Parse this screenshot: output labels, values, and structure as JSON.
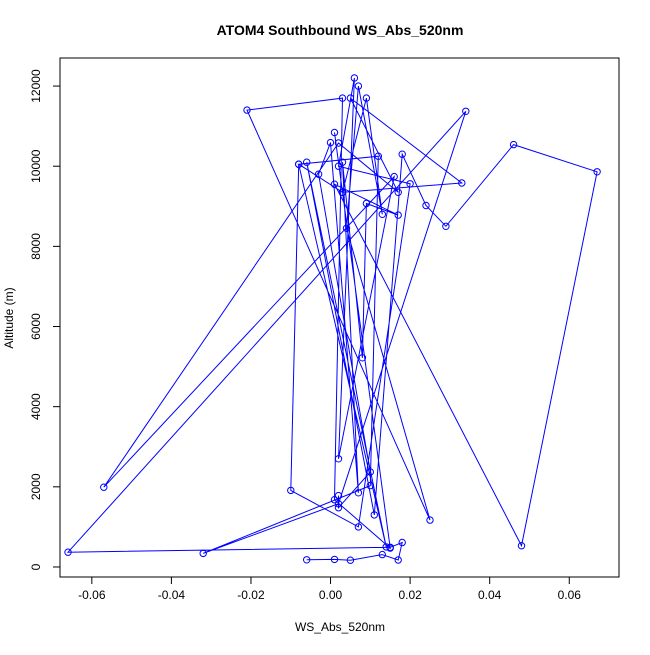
{
  "chart_data": {
    "type": "line",
    "title": "ATOM4 Southbound WS_Abs_520nm",
    "xlabel": "WS_Abs_520nm",
    "ylabel": "Altitude (m)",
    "xlim": [
      -0.068,
      0.0725
    ],
    "ylim": [
      -250,
      12700
    ],
    "x_ticks": [
      -0.06,
      -0.04,
      -0.02,
      0.0,
      0.02,
      0.04,
      0.06
    ],
    "x_tick_labels": [
      "-0.06",
      "-0.04",
      "-0.02",
      "0.00",
      "0.02",
      "0.04",
      "0.06"
    ],
    "y_ticks": [
      0,
      2000,
      4000,
      6000,
      8000,
      10000,
      12000
    ],
    "y_tick_labels": [
      "0",
      "2000",
      "4000",
      "6000",
      "8000",
      "10000",
      "12000"
    ],
    "grid": false,
    "marker": "open-circle",
    "color": "#0000ff",
    "series": [
      {
        "points": [
          [
            -0.006,
            180
          ],
          [
            0.001,
            190
          ],
          [
            0.005,
            170
          ],
          [
            0.013,
            310
          ],
          [
            0.017,
            175
          ],
          [
            0.018,
            610
          ],
          [
            0.015,
            490
          ],
          [
            -0.066,
            370
          ],
          [
            0.034,
            11370
          ],
          [
            0.002,
            1580
          ],
          [
            -0.032,
            340
          ],
          [
            0.01,
            2030
          ],
          [
            0.012,
            10250
          ],
          [
            -0.008,
            10050
          ],
          [
            0.003,
            9350
          ],
          [
            0.001,
            10840
          ],
          [
            0.015,
            470
          ],
          [
            0.001,
            1680
          ],
          [
            0.003,
            11700
          ],
          [
            -0.021,
            11400
          ],
          [
            0.025,
            1170
          ],
          [
            0.004,
            8450
          ],
          [
            0.007,
            12000
          ],
          [
            0.013,
            8800
          ],
          [
            0.009,
            11700
          ],
          [
            0.003,
            9350
          ],
          [
            0.033,
            9580
          ],
          [
            0.005,
            11700
          ],
          [
            0.017,
            9350
          ],
          [
            0.002,
            10580
          ],
          [
            -0.057,
            1990
          ],
          [
            0.016,
            9740
          ],
          [
            0.002,
            2700
          ],
          [
            0.006,
            12200
          ],
          [
            0.002,
            10000
          ],
          [
            0.02,
            9560
          ],
          [
            0.007,
            1000
          ],
          [
            -0.01,
            1910
          ],
          [
            -0.008,
            10050
          ],
          [
            0.014,
            500
          ],
          [
            -0.006,
            10100
          ],
          [
            0.011,
            1300
          ],
          [
            0.018,
            10300
          ],
          [
            0.024,
            9020
          ],
          [
            0.029,
            8500
          ],
          [
            0.046,
            10540
          ],
          [
            0.067,
            9860
          ],
          [
            0.048,
            530
          ],
          [
            0.001,
            9550
          ],
          [
            0.017,
            8780
          ],
          [
            0.009,
            9070
          ],
          [
            0.008,
            5220
          ],
          [
            0.003,
            10100
          ],
          [
            0.007,
            1850
          ],
          [
            0.0,
            10590
          ],
          [
            -0.003,
            9800
          ],
          [
            0.01,
            2370
          ],
          [
            0.002,
            1480
          ],
          [
            0.002,
            1780
          ]
        ]
      }
    ]
  }
}
